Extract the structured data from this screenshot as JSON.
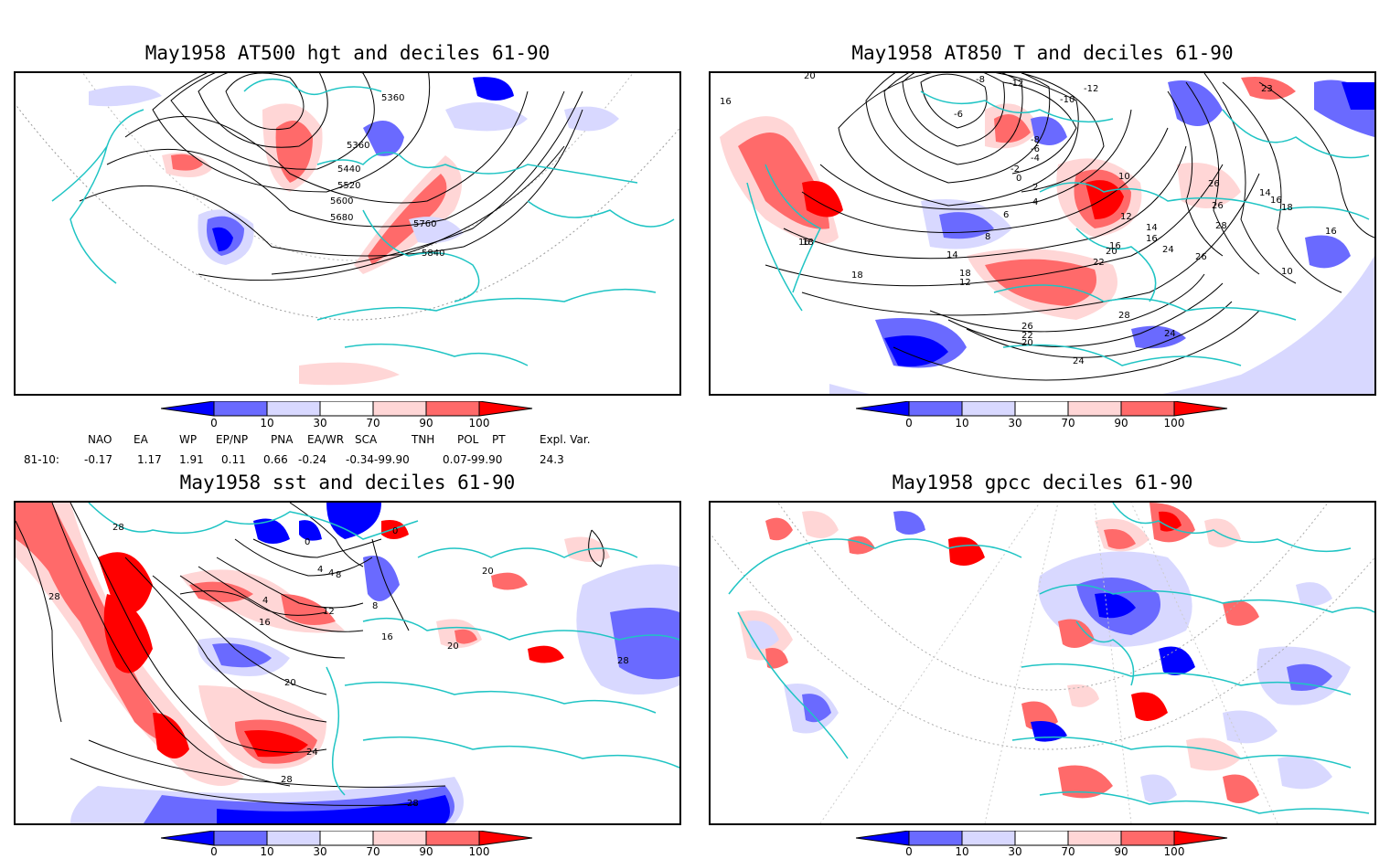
{
  "panels": [
    {
      "title": "May1958 AT500 hgt and deciles 61-90",
      "contour_labels": [
        "5360",
        "5360",
        "5440",
        "5520",
        "5600",
        "5680",
        "5760",
        "5840"
      ]
    },
    {
      "title": "May1958 AT850 T and deciles 61-90",
      "contour_labels": [
        "20",
        "16",
        "-8",
        "-12",
        "-10",
        "-12",
        "-6",
        "23",
        "18",
        "-8",
        "-6",
        "-4",
        "-2",
        "0",
        "2",
        "4",
        "6",
        "8",
        "10",
        "12",
        "14",
        "16",
        "16",
        "20",
        "22",
        "24",
        "26",
        "26",
        "28",
        "26",
        "28",
        "26",
        "24",
        "20",
        "22",
        "24",
        "18",
        "16",
        "18",
        "12",
        "14",
        "10",
        "16",
        "18",
        "16",
        "14"
      ]
    },
    {
      "title": "May1958 sst and deciles 61-90",
      "contour_labels": [
        "28",
        "28",
        "0",
        "0",
        "4",
        "4",
        "8",
        "4",
        "12",
        "16",
        "8",
        "16",
        "20",
        "20",
        "24",
        "28",
        "28",
        "28",
        "20"
      ]
    },
    {
      "title": "May1958 gpcc deciles 61-90",
      "contour_labels": []
    }
  ],
  "colorbar": {
    "tick_labels": [
      "0",
      "10",
      "30",
      "70",
      "90",
      "100"
    ],
    "colors": [
      "#0000ff",
      "#6a6aff",
      "#d8d8ff",
      "#ffffff",
      "#ffd6d6",
      "#ff6a6a",
      "#ff0000"
    ]
  },
  "indices": {
    "headers": [
      "NAO",
      "EA",
      "WP",
      "EP/NP",
      "PNA",
      "EA/WR",
      "SCA",
      "TNH",
      "POL",
      "PT",
      "Expl. Var."
    ],
    "row_label": "81-10:",
    "values": [
      "-0.17",
      "1.17",
      "1.91",
      "0.11",
      "0.66",
      "-0.24",
      "-0.34-99.90",
      "0.07-99.90",
      "24.3"
    ]
  }
}
